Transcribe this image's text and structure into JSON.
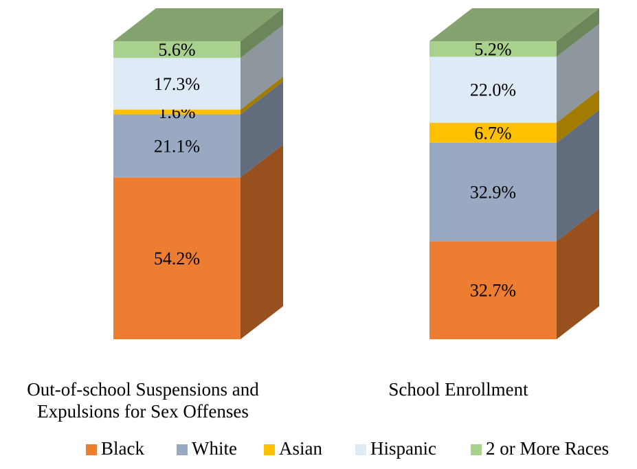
{
  "chart_data": {
    "type": "bar",
    "stacked": true,
    "style": "3d",
    "categories": [
      "Out-of-school Suspensions and Expulsions for Sex Offenses",
      "School Enrollment"
    ],
    "series": [
      {
        "name": "Black",
        "color": "#ED7D31",
        "values": [
          54.2,
          32.7
        ],
        "labels": [
          "54.2%",
          "32.7%"
        ]
      },
      {
        "name": "White",
        "color": "#98A9C1",
        "values": [
          21.1,
          32.9
        ],
        "labels": [
          "21.1%",
          "32.9%"
        ]
      },
      {
        "name": "Asian",
        "color": "#FFC000",
        "values": [
          1.6,
          6.7
        ],
        "labels": [
          "1.6%",
          "6.7%"
        ]
      },
      {
        "name": "Hispanic",
        "color": "#DEEBF7",
        "values": [
          17.3,
          22.0
        ],
        "labels": [
          "17.3%",
          "22.0%"
        ]
      },
      {
        "name": "2 or More Races",
        "color": "#A9D18E",
        "values": [
          5.6,
          5.2
        ],
        "labels": [
          "5.6%",
          "5.2%"
        ]
      }
    ],
    "title": "",
    "xlabel": "",
    "ylabel": "",
    "legend": "bottom"
  }
}
